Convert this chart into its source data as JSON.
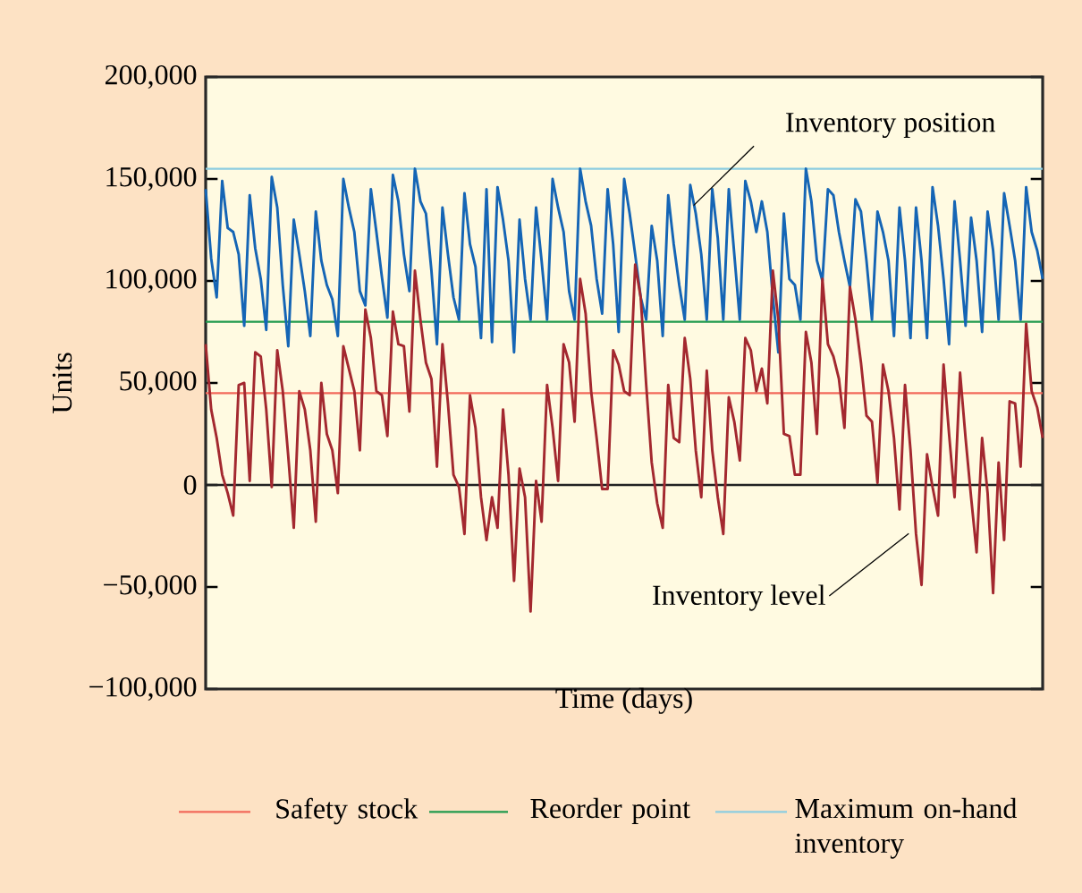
{
  "chart_data": {
    "type": "line",
    "xlabel": "Time  (days)",
    "ylabel": "Units",
    "categories": [
      null,
      null,
      null,
      null,
      null,
      null,
      null,
      null,
      null,
      null,
      null,
      null,
      null,
      null,
      null,
      null,
      null,
      null,
      null,
      null,
      null,
      null,
      null,
      null,
      null,
      null,
      null,
      null,
      null,
      null,
      null,
      null,
      null,
      null,
      null,
      null,
      null,
      null,
      null,
      null,
      null,
      null,
      null,
      null,
      null,
      null,
      null,
      null,
      null,
      null,
      null,
      null,
      null,
      null,
      null,
      null,
      null,
      null,
      null,
      null,
      null,
      null,
      null,
      null,
      null,
      null,
      null,
      null,
      null,
      null,
      null,
      null,
      null,
      null,
      null,
      null,
      null,
      null,
      null,
      null,
      null,
      null,
      null,
      null,
      null,
      null,
      null,
      null,
      null,
      null,
      null,
      null,
      null,
      null,
      null,
      null,
      null,
      null,
      null,
      null,
      null,
      null,
      null,
      null,
      null,
      null,
      null,
      null,
      null,
      null,
      null,
      null,
      null,
      null,
      null,
      null,
      null,
      null,
      null,
      null,
      null,
      null,
      null,
      null,
      null,
      null,
      null,
      null,
      null,
      null,
      null,
      null,
      null,
      null,
      null,
      null,
      null,
      null,
      null,
      null,
      null,
      null,
      null,
      null,
      null,
      null,
      null,
      null,
      null,
      null,
      null,
      null,
      null
    ],
    "series": [
      {
        "name": "Inventory position",
        "color": "#1565b5",
        "values": [
          145000,
          111000,
          92000,
          149000,
          126000,
          124000,
          113000,
          78000,
          142000,
          116000,
          101000,
          76000,
          151000,
          136000,
          98000,
          68000,
          130000,
          113000,
          95000,
          73000,
          134000,
          110000,
          98000,
          91000,
          73000,
          150000,
          136000,
          124000,
          95000,
          88000,
          145000,
          124000,
          102000,
          82000,
          152000,
          139000,
          113000,
          95000,
          155000,
          139000,
          133000,
          105000,
          69000,
          136000,
          113000,
          92000,
          81000,
          143000,
          118000,
          107000,
          72000,
          145000,
          70000,
          146000,
          130000,
          110000,
          65000,
          130000,
          101000,
          81000,
          136000,
          110000,
          81000,
          150000,
          136000,
          124000,
          95000,
          81000,
          155000,
          139000,
          127000,
          101000,
          84000,
          145000,
          118000,
          75000,
          150000,
          133000,
          113000,
          92000,
          81000,
          127000,
          110000,
          73000,
          142000,
          118000,
          98000,
          81000,
          147000,
          133000,
          113000,
          81000,
          145000,
          121000,
          81000,
          145000,
          113000,
          81000,
          149000,
          139000,
          124000,
          139000,
          124000,
          92000,
          65000,
          133000,
          101000,
          98000,
          81000,
          155000,
          139000,
          110000,
          100000,
          145000,
          142000,
          124000,
          110000,
          97000,
          140000,
          134000,
          110000,
          81000,
          134000,
          124000,
          110000,
          73000,
          136000,
          110000,
          72000,
          136000,
          110000,
          72000,
          146000,
          127000,
          101000,
          69000,
          139000,
          110000,
          78000,
          131000,
          110000,
          75000,
          134000,
          115000,
          81000,
          143000,
          127000,
          110000,
          81000,
          146000,
          124000,
          115000,
          101000
        ]
      },
      {
        "name": "Inventory level",
        "color": "#a3282f",
        "values": [
          69000,
          37000,
          23000,
          5000,
          -4000,
          -15000,
          49000,
          50000,
          2000,
          65000,
          63000,
          37000,
          -1000,
          66000,
          46000,
          14000,
          -21000,
          46000,
          37000,
          17000,
          -18000,
          50000,
          25000,
          17000,
          -4000,
          68000,
          57000,
          46000,
          17000,
          86000,
          72000,
          46000,
          44000,
          24000,
          85000,
          69000,
          68000,
          36000,
          105000,
          81000,
          60000,
          52000,
          9000,
          69000,
          40000,
          5000,
          -1000,
          -24000,
          44000,
          28000,
          -6000,
          -27000,
          -6000,
          -21000,
          37000,
          5000,
          -47000,
          8000,
          -6000,
          -62000,
          2000,
          -18000,
          49000,
          28000,
          2000,
          69000,
          60000,
          31000,
          101000,
          84000,
          46000,
          23000,
          -2000,
          -2000,
          66000,
          59000,
          46000,
          44000,
          108000,
          92000,
          49000,
          11000,
          -9000,
          -21000,
          49000,
          23000,
          21000,
          72000,
          52000,
          17000,
          -6000,
          56000,
          17000,
          -6000,
          -24000,
          43000,
          31000,
          12000,
          72000,
          66000,
          46000,
          57000,
          40000,
          105000,
          81000,
          25000,
          24000,
          5000,
          5000,
          75000,
          60000,
          25000,
          101000,
          69000,
          63000,
          52000,
          28000,
          97000,
          81000,
          60000,
          34000,
          31000,
          1000,
          59000,
          46000,
          23000,
          -12000,
          49000,
          17000,
          -24000,
          -49000,
          15000,
          -1000,
          -15000,
          59000,
          25000,
          -6000,
          55000,
          23000,
          -6000,
          -33000,
          23000,
          -4000,
          -53000,
          11000,
          -27000,
          41000,
          40000,
          9000,
          79000,
          46000,
          38000,
          23000
        ]
      }
    ],
    "ylim": [
      -100000,
      200000
    ],
    "yticks": [
      {
        "value": -100000,
        "label": "−100,000"
      },
      {
        "value": -50000,
        "label": "−50,000"
      },
      {
        "value": 0,
        "label": "0"
      },
      {
        "value": 50000,
        "label": "50,000"
      },
      {
        "value": 100000,
        "label": "100,000"
      },
      {
        "value": 150000,
        "label": "150,000"
      },
      {
        "value": 200000,
        "label": "200,000"
      }
    ],
    "ref_lines": [
      {
        "axis": "y",
        "value": 45000,
        "label": "Safety stock",
        "color": "#f2685a"
      },
      {
        "axis": "y",
        "value": 80000,
        "label": "Reorder point",
        "color": "#1f9a4c"
      },
      {
        "axis": "y",
        "value": 155000,
        "label": "Maximum on-hand inventory",
        "color": "#8ccde0"
      },
      {
        "axis": "y",
        "value": 0,
        "color": "#222222"
      }
    ],
    "legend": "bottom"
  }
}
